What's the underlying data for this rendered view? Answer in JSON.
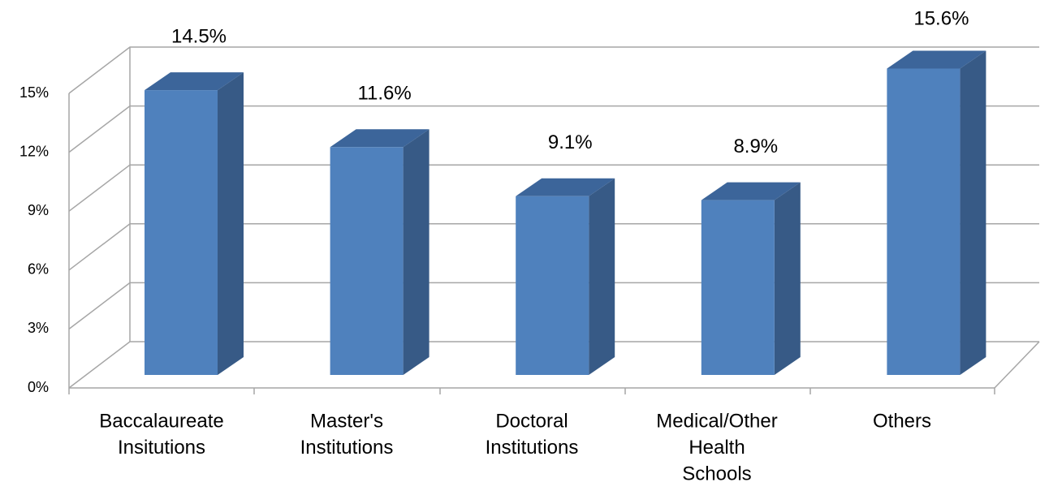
{
  "chart_data": {
    "type": "bar3d",
    "categories": [
      [
        "Baccalaureate",
        "Insitutions"
      ],
      [
        "Master's",
        "Institutions"
      ],
      [
        "Doctoral",
        "Institutions"
      ],
      [
        "Medical/Other",
        "Health",
        "Schools"
      ],
      [
        "Others"
      ]
    ],
    "values": [
      14.5,
      11.6,
      9.1,
      8.9,
      15.6
    ],
    "value_labels": [
      "14.5%",
      "11.6%",
      "9.1%",
      "8.9%",
      "15.6%"
    ],
    "color": "#4f81bd",
    "ylim": [
      0,
      15
    ],
    "yticks": [
      {
        "value": 0,
        "label": "0%"
      },
      {
        "value": 3,
        "label": "3%"
      },
      {
        "value": 6,
        "label": "6%"
      },
      {
        "value": 9,
        "label": "9%"
      },
      {
        "value": 12,
        "label": "12%"
      },
      {
        "value": 15,
        "label": "15%"
      }
    ],
    "grid": true
  }
}
